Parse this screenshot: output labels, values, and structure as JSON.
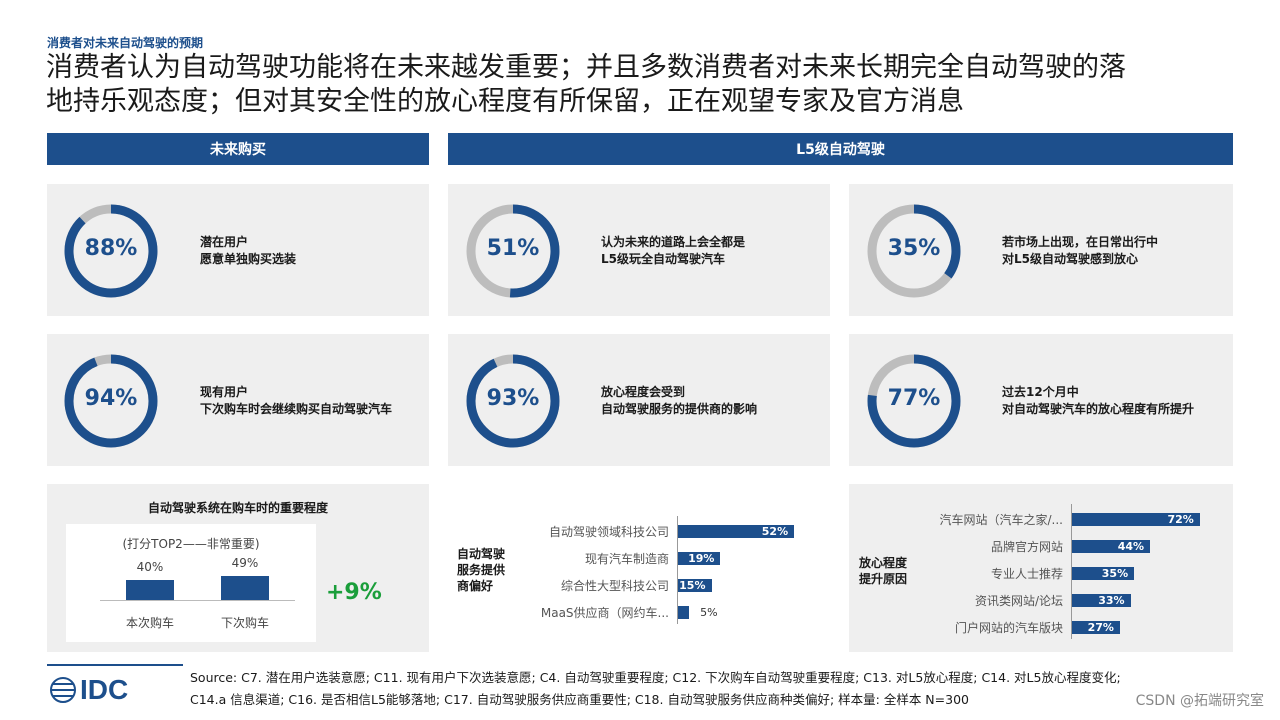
{
  "kicker": "消费者对未来自动驾驶的预期",
  "headline": {
    "line1": "消费者认为自动驾驶功能将在未来越发重要；并且多数消费者对未来长期完全自动驾驶的落",
    "line2": "地持乐观态度；但对其安全性的放心程度有所保留，正在观望专家及官方消息"
  },
  "sections": {
    "left": "未来购买",
    "right": "L5级自动驾驶"
  },
  "colors": {
    "accent": "#1d4f8c",
    "track": "#bdbdbd",
    "panel": "#efefef",
    "positive": "#1a9e3a"
  },
  "donuts": [
    {
      "value": 88,
      "label": "88%",
      "text1": "潜在用户",
      "text2": "愿意单独购买选装"
    },
    {
      "value": 51,
      "label": "51%",
      "text1": "认为未来的道路上会全都是",
      "text2": "L5级玩全自动驾驶汽车"
    },
    {
      "value": 35,
      "label": "35%",
      "text1": "若市场上出现，在日常出行中",
      "text2": "对L5级自动驾驶感到放心"
    },
    {
      "value": 94,
      "label": "94%",
      "text1": "现有用户",
      "text2": "下次购车时会继续购买自动驾驶汽车"
    },
    {
      "value": 93,
      "label": "93%",
      "text1": "放心程度会受到",
      "text2": "自动驾驶服务的提供商的影响"
    },
    {
      "value": 77,
      "label": "77%",
      "text1": "过去12个月中",
      "text2": "对自动驾驶汽车的放心程度有所提升"
    }
  ],
  "chart_data": [
    {
      "type": "bar",
      "title": "自动驾驶系统在购车时的重要程度",
      "subtitle": "(打分TOP2——非常重要)",
      "categories": [
        "本次购车",
        "下次购车"
      ],
      "values": [
        40,
        49
      ],
      "value_labels": [
        "40%",
        "49%"
      ],
      "delta_label": "+9%",
      "ylim": [
        0,
        100
      ]
    },
    {
      "type": "bar",
      "orientation": "horizontal",
      "title": "自动驾驶服务提供商偏好",
      "categories": [
        "自动驾驶领域科技公司",
        "现有汽车制造商",
        "综合性大型科技公司",
        "MaaS供应商（网约车..."
      ],
      "values": [
        52,
        19,
        15,
        5
      ],
      "value_labels": [
        "52%",
        "19%",
        "15%",
        "5%"
      ],
      "xlim": [
        0,
        60
      ]
    },
    {
      "type": "bar",
      "orientation": "horizontal",
      "title": "放心程度提升原因",
      "categories": [
        "汽车网站（汽车之家/...",
        "品牌官方网站",
        "专业人士推荐",
        "资讯类网站/论坛",
        "门户网站的汽车版块"
      ],
      "values": [
        72,
        44,
        35,
        33,
        27
      ],
      "value_labels": [
        "72%",
        "44%",
        "35%",
        "33%",
        "27%"
      ],
      "xlim": [
        0,
        80
      ]
    }
  ],
  "chart_side_labels": {
    "providers": [
      "自动驾驶",
      "服务提供",
      "商偏好"
    ],
    "reasons": [
      "放心程度",
      "提升原因"
    ]
  },
  "footer": {
    "logo": "IDC",
    "line1": "Source: C7. 潜在用户选装意愿; C11. 现有用户下次选装意愿; C4. 自动驾驶重要程度; C12. 下次购车自动驾驶重要程度; C13. 对L5放心程度; C14. 对L5放心程度变化;",
    "line2": "C14.a 信息渠道; C16. 是否相信L5能够落地; C17. 自动驾驶服务供应商重要性; C18. 自动驾驶服务供应商种类偏好; 样本量: 全样本 N=300"
  },
  "watermark": "CSDN @拓端研究室"
}
